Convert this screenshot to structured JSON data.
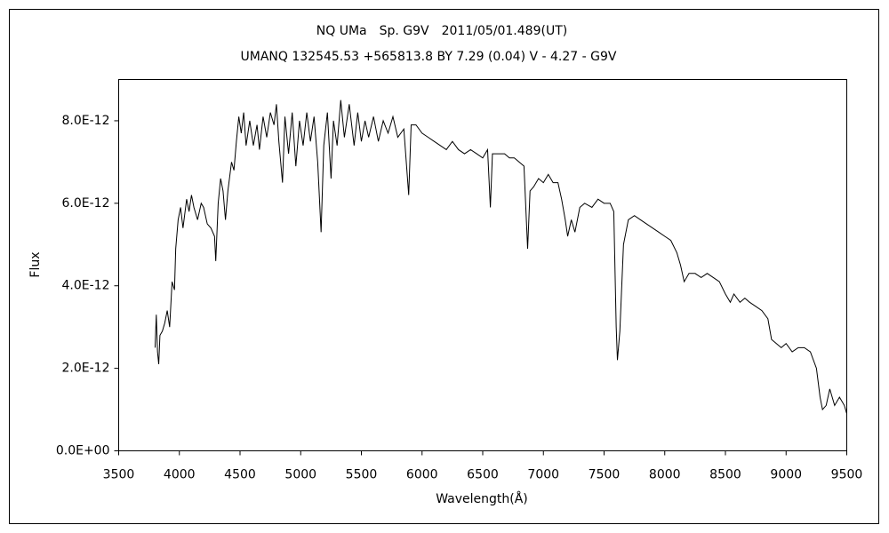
{
  "chart_data": {
    "type": "line",
    "title": "NQ UMa　Sp. G9V　2011/05/01.489(UT)",
    "subtitle": "UMANQ 132545.53 +565813.8 BY 7.29 (0.04) V - 4.27 - G9V",
    "xlabel": "Wavelength(Å)",
    "ylabel": "Flux",
    "color": "#000000",
    "xlim": [
      3500,
      9500
    ],
    "xticks": [
      3500,
      4000,
      4500,
      5000,
      5500,
      6000,
      6500,
      7000,
      7500,
      8000,
      8500,
      9000,
      9500
    ],
    "ylim": [
      0,
      9e-12
    ],
    "yticks": [
      {
        "value": 0,
        "label": "0.0E+00"
      },
      {
        "value": 2e-12,
        "label": "2.0E-12"
      },
      {
        "value": 4e-12,
        "label": "4.0E-12"
      },
      {
        "value": 6e-12,
        "label": "6.0E-12"
      },
      {
        "value": 8e-12,
        "label": "8.0E-12"
      }
    ],
    "grid": false,
    "x": [
      3800,
      3810,
      3820,
      3830,
      3840,
      3860,
      3880,
      3900,
      3920,
      3940,
      3960,
      3970,
      3990,
      4010,
      4030,
      4060,
      4080,
      4100,
      4120,
      4150,
      4180,
      4200,
      4230,
      4260,
      4290,
      4300,
      4320,
      4340,
      4360,
      4380,
      4400,
      4430,
      4450,
      4470,
      4490,
      4510,
      4530,
      4550,
      4580,
      4610,
      4640,
      4660,
      4690,
      4720,
      4750,
      4780,
      4800,
      4820,
      4850,
      4870,
      4900,
      4930,
      4960,
      4990,
      5020,
      5050,
      5080,
      5110,
      5140,
      5168,
      5190,
      5220,
      5250,
      5270,
      5300,
      5330,
      5360,
      5400,
      5440,
      5470,
      5500,
      5530,
      5560,
      5600,
      5640,
      5680,
      5720,
      5760,
      5800,
      5850,
      5890,
      5910,
      5950,
      6000,
      6050,
      6100,
      6150,
      6200,
      6250,
      6300,
      6350,
      6400,
      6450,
      6500,
      6540,
      6563,
      6580,
      6620,
      6680,
      6720,
      6760,
      6800,
      6840,
      6870,
      6890,
      6920,
      6960,
      7000,
      7040,
      7080,
      7120,
      7150,
      7180,
      7200,
      7230,
      7260,
      7300,
      7340,
      7400,
      7450,
      7500,
      7550,
      7580,
      7600,
      7610,
      7630,
      7660,
      7700,
      7750,
      7800,
      7850,
      7900,
      7950,
      8000,
      8050,
      8100,
      8130,
      8160,
      8200,
      8250,
      8300,
      8350,
      8400,
      8450,
      8500,
      8540,
      8570,
      8620,
      8660,
      8700,
      8750,
      8800,
      8850,
      8880,
      8920,
      8960,
      9000,
      9050,
      9100,
      9150,
      9200,
      9250,
      9280,
      9300,
      9330,
      9360,
      9400,
      9440,
      9480,
      9500
    ],
    "values": [
      2.5e-12,
      3.3e-12,
      2.4e-12,
      2.1e-12,
      2.8e-12,
      2.9e-12,
      3.1e-12,
      3.4e-12,
      3e-12,
      4.1e-12,
      3.9e-12,
      4.9e-12,
      5.6e-12,
      5.9e-12,
      5.4e-12,
      6.1e-12,
      5.8e-12,
      6.2e-12,
      5.9e-12,
      5.6e-12,
      6e-12,
      5.9e-12,
      5.5e-12,
      5.4e-12,
      5.2e-12,
      4.6e-12,
      6e-12,
      6.6e-12,
      6.3e-12,
      5.6e-12,
      6.3e-12,
      7e-12,
      6.8e-12,
      7.5e-12,
      8.1e-12,
      7.7e-12,
      8.2e-12,
      7.4e-12,
      8e-12,
      7.4e-12,
      7.9e-12,
      7.3e-12,
      8.1e-12,
      7.6e-12,
      8.2e-12,
      7.9e-12,
      8.4e-12,
      7.5e-12,
      6.5e-12,
      8.1e-12,
      7.2e-12,
      8.2e-12,
      6.9e-12,
      8e-12,
      7.4e-12,
      8.2e-12,
      7.5e-12,
      8.1e-12,
      7e-12,
      5.3e-12,
      7.4e-12,
      8.2e-12,
      6.6e-12,
      8e-12,
      7.4e-12,
      8.5e-12,
      7.6e-12,
      8.4e-12,
      7.4e-12,
      8.2e-12,
      7.5e-12,
      8e-12,
      7.6e-12,
      8.1e-12,
      7.5e-12,
      8e-12,
      7.7e-12,
      8.1e-12,
      7.6e-12,
      7.8e-12,
      6.2e-12,
      7.9e-12,
      7.9e-12,
      7.7e-12,
      7.6e-12,
      7.5e-12,
      7.4e-12,
      7.3e-12,
      7.5e-12,
      7.3e-12,
      7.2e-12,
      7.3e-12,
      7.2e-12,
      7.1e-12,
      7.3e-12,
      5.9e-12,
      7.2e-12,
      7.2e-12,
      7.2e-12,
      7.1e-12,
      7.1e-12,
      7e-12,
      6.9e-12,
      4.9e-12,
      6.3e-12,
      6.4e-12,
      6.6e-12,
      6.5e-12,
      6.7e-12,
      6.5e-12,
      6.5e-12,
      6.1e-12,
      5.6e-12,
      5.2e-12,
      5.6e-12,
      5.3e-12,
      5.9e-12,
      6e-12,
      5.9e-12,
      6.1e-12,
      6e-12,
      6e-12,
      5.8e-12,
      3e-12,
      2.2e-12,
      2.9e-12,
      5e-12,
      5.6e-12,
      5.7e-12,
      5.6e-12,
      5.5e-12,
      5.4e-12,
      5.3e-12,
      5.2e-12,
      5.1e-12,
      4.8e-12,
      4.5e-12,
      4.1e-12,
      4.3e-12,
      4.3e-12,
      4.2e-12,
      4.3e-12,
      4.2e-12,
      4.1e-12,
      3.8e-12,
      3.6e-12,
      3.8e-12,
      3.6e-12,
      3.7e-12,
      3.6e-12,
      3.5e-12,
      3.4e-12,
      3.2e-12,
      2.7e-12,
      2.6e-12,
      2.5e-12,
      2.6e-12,
      2.4e-12,
      2.5e-12,
      2.5e-12,
      2.4e-12,
      2e-12,
      1.3e-12,
      1e-12,
      1.1e-12,
      1.5e-12,
      1.1e-12,
      1.3e-12,
      1.1e-12,
      9e-13
    ]
  }
}
